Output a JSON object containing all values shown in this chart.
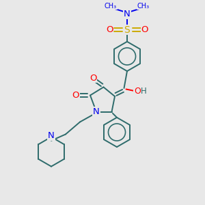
{
  "background_color": "#e8e8e8",
  "bond_color": "#2d6b6b",
  "atom_colors": {
    "N": "#0000ee",
    "O": "#ff0000",
    "S": "#ccaa00",
    "C": "#2d6b6b",
    "H": "#2d6b6b"
  },
  "figsize": [
    3.0,
    3.0
  ],
  "dpi": 100,
  "xlim": [
    0,
    10
  ],
  "ylim": [
    0,
    10
  ]
}
